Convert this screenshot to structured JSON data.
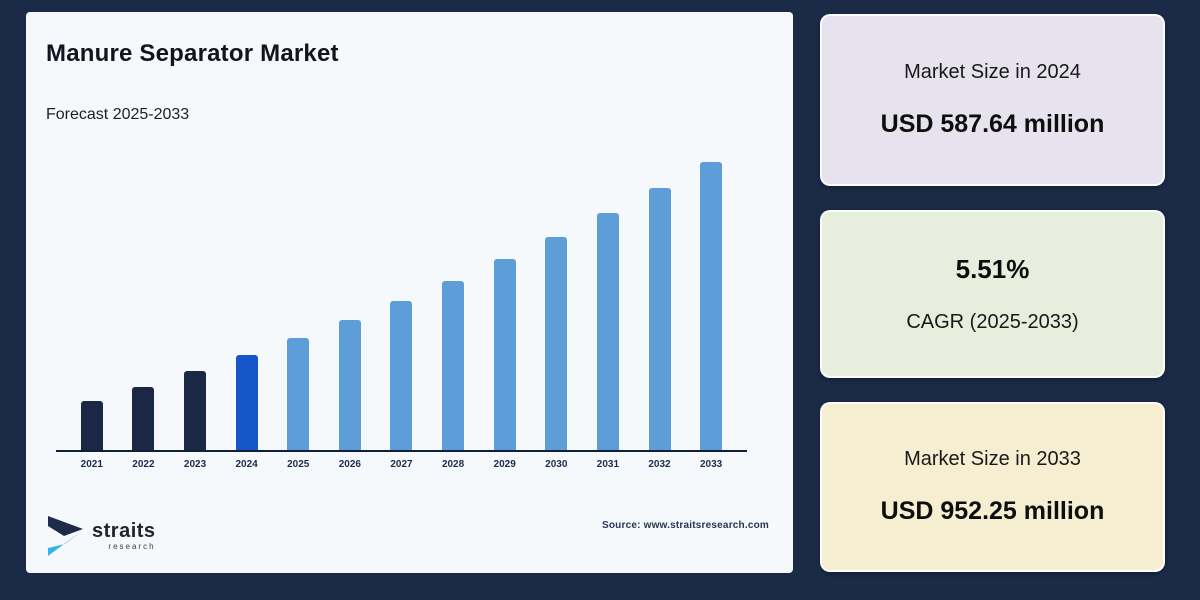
{
  "page": {
    "bg": "#1b2a46",
    "card_bg": "#f6f9fc"
  },
  "chart": {
    "title": "Manure Separator Market",
    "subtitle": "Forecast 2025-2033",
    "source": "Source: www.straitsresearch.com"
  },
  "chart_data": {
    "type": "bar",
    "title": "Manure Separator Market",
    "subtitle": "Forecast 2025-2033",
    "categories": [
      2021,
      2022,
      2023,
      2024,
      2025,
      2026,
      2027,
      2028,
      2029,
      2030,
      2031,
      2032,
      2033
    ],
    "values": [
      500.29,
      527.86,
      556.95,
      587.64,
      620.02,
      654.18,
      690.22,
      728.25,
      768.38,
      810.72,
      855.39,
      902.52,
      952.25
    ],
    "unit": "USD million",
    "base_year": 2024,
    "historical_color": "#1b2845",
    "base_year_color": "#1557cb",
    "forecast_color": "#5e9ed8",
    "axis_color": "#131f3a",
    "ylim": [
      408,
      975
    ],
    "grid": false,
    "y_axis_shown": false,
    "legend": "none",
    "notes": "Bar values for 2021-2023 and 2025-2032 estimated from CAGR 5.51% around stated 2024 value USD 587.64 million and 2033 value USD 952.25 million; no y-axis shown in figure."
  },
  "panels": [
    {
      "label": "Market Size in 2024",
      "value": "USD 587.64 million",
      "bg": "#e6e2ee"
    },
    {
      "label": "CAGR (2025-2033)",
      "value": "5.51%",
      "bg": "#e7eedd"
    },
    {
      "label": "Market Size in 2033",
      "value": "USD 952.25 million",
      "bg": "#f5eed1"
    }
  ],
  "logo": {
    "name": "straits",
    "sub": "research",
    "dark_color": "#1e2a4a",
    "cyan_color": "#35b4e8"
  }
}
